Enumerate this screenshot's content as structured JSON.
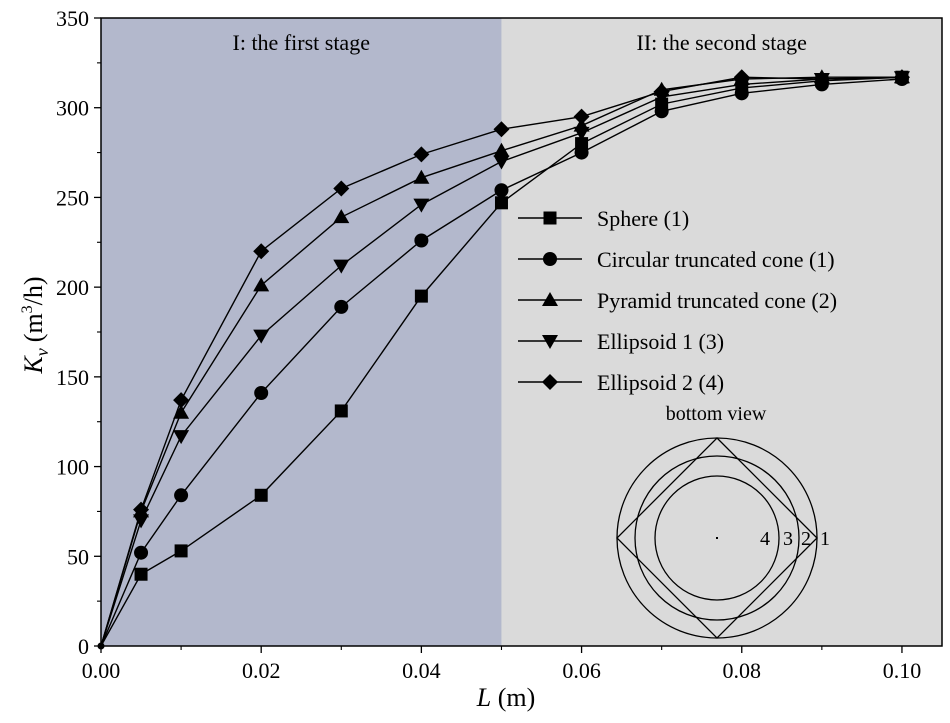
{
  "chart_data": {
    "type": "line",
    "xlabel_symbol": "L",
    "xlabel_unit": "(m)",
    "ylabel_symbol": "K",
    "ylabel_subscript": "v",
    "ylabel_unit_pre": "(m",
    "ylabel_unit_sup": "3",
    "ylabel_unit_post": "/h)",
    "xlim": [
      0,
      0.105
    ],
    "ylim": [
      0,
      350
    ],
    "x_ticks": [
      "0.00",
      "0.02",
      "0.04",
      "0.06",
      "0.08",
      "0.10"
    ],
    "y_ticks": [
      "0",
      "50",
      "100",
      "150",
      "200",
      "250",
      "300",
      "350"
    ],
    "regions": [
      {
        "label": "I: the first stage",
        "from": 0,
        "to": 0.05,
        "color": "#b3b8cc"
      },
      {
        "label": "II: the second stage",
        "from": 0.05,
        "to": 0.105,
        "color": "#dadada"
      }
    ],
    "legend_position": "center-right",
    "series": [
      {
        "name": "Sphere (1)",
        "marker": "square",
        "x": [
          0,
          0.005,
          0.01,
          0.02,
          0.03,
          0.04,
          0.05,
          0.06,
          0.07,
          0.08,
          0.09,
          0.1
        ],
        "y": [
          0,
          40,
          53,
          84,
          131,
          195,
          247,
          280,
          302,
          311,
          315,
          317
        ]
      },
      {
        "name": "Circular truncated cone (1)",
        "marker": "circle",
        "x": [
          0,
          0.005,
          0.01,
          0.02,
          0.03,
          0.04,
          0.05,
          0.06,
          0.07,
          0.08,
          0.09,
          0.1
        ],
        "y": [
          0,
          52,
          84,
          141,
          189,
          226,
          254,
          275,
          298,
          308,
          313,
          316
        ]
      },
      {
        "name": "Pyramid truncated cone (2)",
        "marker": "triangle-up",
        "x": [
          0,
          0.005,
          0.01,
          0.02,
          0.03,
          0.04,
          0.05,
          0.06,
          0.07,
          0.08,
          0.09,
          0.1
        ],
        "y": [
          0,
          75,
          130,
          201,
          239,
          261,
          276,
          290,
          310,
          316,
          317,
          317
        ]
      },
      {
        "name": "Ellipsoid 1 (3)",
        "marker": "triangle-down",
        "x": [
          0,
          0.005,
          0.01,
          0.02,
          0.03,
          0.04,
          0.05,
          0.06,
          0.07,
          0.08,
          0.09,
          0.1
        ],
        "y": [
          0,
          70,
          117,
          173,
          212,
          246,
          270,
          286,
          306,
          313,
          316,
          317
        ]
      },
      {
        "name": "Ellipsoid 2 (4)",
        "marker": "diamond",
        "x": [
          0,
          0.005,
          0.01,
          0.02,
          0.03,
          0.04,
          0.05,
          0.06,
          0.07,
          0.08,
          0.09,
          0.1
        ],
        "y": [
          0,
          76,
          137,
          220,
          255,
          274,
          288,
          295,
          309,
          317,
          316,
          317
        ]
      }
    ]
  },
  "inset": {
    "title": "bottom view",
    "labels": [
      "4",
      "3",
      "2",
      "1"
    ]
  }
}
